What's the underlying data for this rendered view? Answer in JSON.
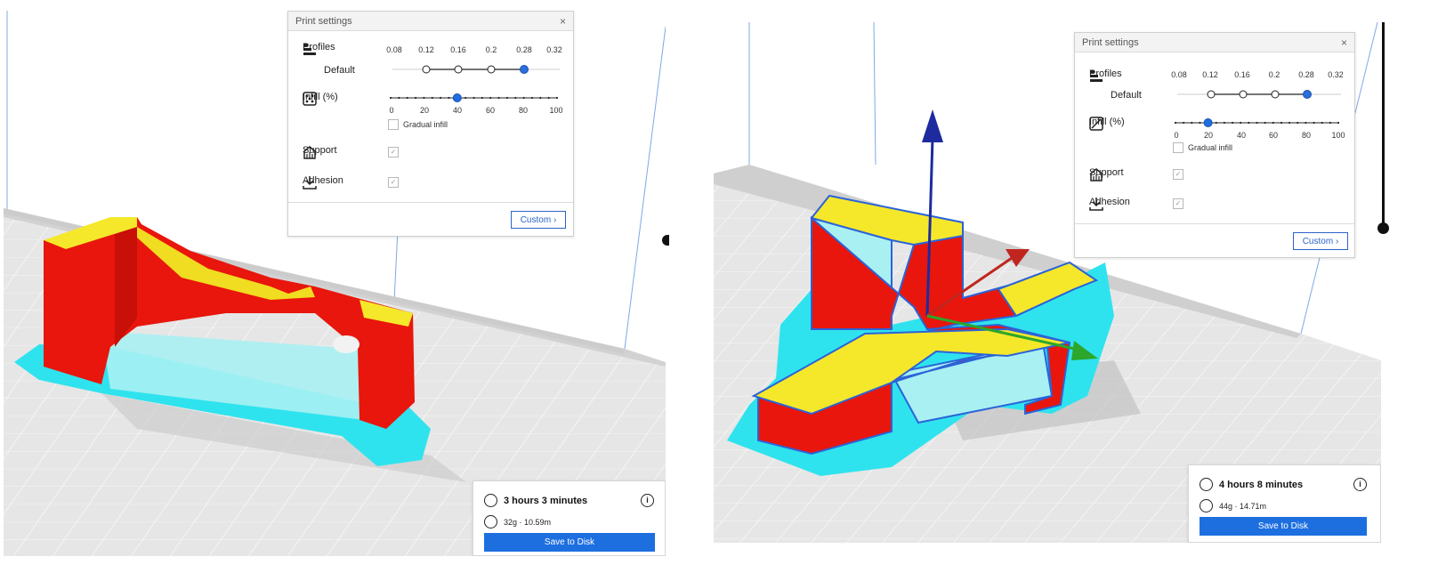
{
  "left": {
    "panel": {
      "title": "Print settings",
      "close_glyph": "×",
      "profiles_label": "Profiles",
      "profile_name": "Default",
      "layer_ticks": [
        "0.08",
        "0.12",
        "0.16",
        "0.2",
        "0.28",
        "0.32"
      ],
      "selected_layer": "0.28",
      "infill_label": "Infill (%)",
      "infill_ticks": [
        "0",
        "20",
        "40",
        "60",
        "80",
        "100"
      ],
      "infill_value": 40,
      "gradual_label": "Gradual infill",
      "support_label": "Support",
      "adhesion_label": "Adhesion",
      "check_glyph": "✓",
      "custom_label": "Custom",
      "custom_chevron": "›"
    },
    "summary": {
      "time": "3 hours 3 minutes",
      "material": "32g · 10.59m",
      "info_glyph": "i",
      "save_label": "Save to Disk"
    }
  },
  "right": {
    "panel": {
      "title": "Print settings",
      "close_glyph": "×",
      "profiles_label": "Profiles",
      "profile_name": "Default",
      "layer_ticks": [
        "0.08",
        "0.12",
        "0.16",
        "0.2",
        "0.28",
        "0.32"
      ],
      "selected_layer": "0.28",
      "infill_label": "Infill (%)",
      "infill_ticks": [
        "0",
        "20",
        "40",
        "60",
        "80",
        "100"
      ],
      "infill_value": 20,
      "gradual_label": "Gradual infill",
      "support_label": "Support",
      "adhesion_label": "Adhesion",
      "check_glyph": "✓",
      "custom_label": "Custom",
      "custom_chevron": "›"
    },
    "summary": {
      "time": "4 hours 8 minutes",
      "material": "44g · 14.71m",
      "info_glyph": "i",
      "save_label": "Save to Disk"
    }
  },
  "colors": {
    "accent": "#1d6fe0",
    "model_wall": "#e8160c",
    "model_top": "#f5e82a",
    "support": "#29e6ee",
    "bed": "#e4e4e4"
  }
}
